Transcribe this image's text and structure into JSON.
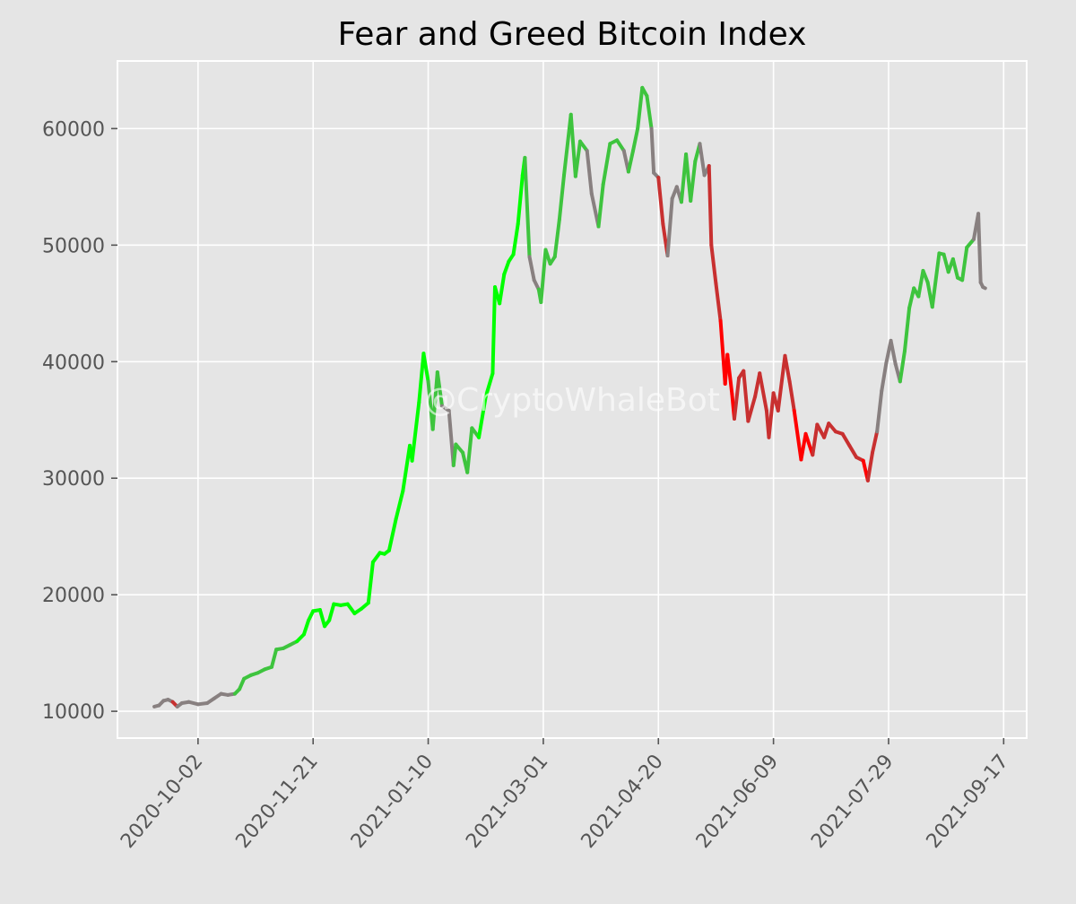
{
  "chart_data": {
    "type": "line",
    "title": "Fear and Greed Bitcoin Index",
    "xlabel": "",
    "ylabel": "",
    "watermark": "@CryptoWhaleBot",
    "xlim": [
      "2020-08-28",
      "2021-09-27"
    ],
    "ylim": [
      7700,
      65800
    ],
    "grid": true,
    "x_ticks": [
      "2020-10-02",
      "2020-11-21",
      "2021-01-10",
      "2021-03-01",
      "2021-04-20",
      "2021-06-09",
      "2021-07-29",
      "2021-09-17"
    ],
    "y_ticks": [
      10000,
      20000,
      30000,
      40000,
      50000,
      60000
    ],
    "color_scale": {
      "extreme_fear": "#ff0000",
      "fear": "#c83030",
      "neutral": "#888080",
      "greed": "#3ec43e",
      "extreme_greed": "#00ff00"
    },
    "series": [
      {
        "points": [
          {
            "x": "2020-09-13",
            "y": 10400,
            "sentiment": "fear"
          },
          {
            "x": "2020-09-15",
            "y": 10500,
            "sentiment": "neutral"
          },
          {
            "x": "2020-09-17",
            "y": 10900,
            "sentiment": "neutral"
          },
          {
            "x": "2020-09-19",
            "y": 11000,
            "sentiment": "neutral"
          },
          {
            "x": "2020-09-21",
            "y": 10800,
            "sentiment": "neutral"
          },
          {
            "x": "2020-09-23",
            "y": 10400,
            "sentiment": "fear"
          },
          {
            "x": "2020-09-25",
            "y": 10700,
            "sentiment": "neutral"
          },
          {
            "x": "2020-09-28",
            "y": 10800,
            "sentiment": "neutral"
          },
          {
            "x": "2020-10-02",
            "y": 10600,
            "sentiment": "neutral"
          },
          {
            "x": "2020-10-06",
            "y": 10700,
            "sentiment": "neutral"
          },
          {
            "x": "2020-10-09",
            "y": 11100,
            "sentiment": "neutral"
          },
          {
            "x": "2020-10-12",
            "y": 11500,
            "sentiment": "neutral"
          },
          {
            "x": "2020-10-15",
            "y": 11400,
            "sentiment": "neutral"
          },
          {
            "x": "2020-10-18",
            "y": 11500,
            "sentiment": "neutral"
          },
          {
            "x": "2020-10-20",
            "y": 11900,
            "sentiment": "greed"
          },
          {
            "x": "2020-10-22",
            "y": 12800,
            "sentiment": "greed"
          },
          {
            "x": "2020-10-25",
            "y": 13100,
            "sentiment": "greed"
          },
          {
            "x": "2020-10-28",
            "y": 13300,
            "sentiment": "greed"
          },
          {
            "x": "2020-10-31",
            "y": 13600,
            "sentiment": "greed"
          },
          {
            "x": "2020-11-03",
            "y": 13800,
            "sentiment": "greed"
          },
          {
            "x": "2020-11-05",
            "y": 15300,
            "sentiment": "greed"
          },
          {
            "x": "2020-11-08",
            "y": 15400,
            "sentiment": "greed"
          },
          {
            "x": "2020-11-11",
            "y": 15700,
            "sentiment": "greed"
          },
          {
            "x": "2020-11-14",
            "y": 16000,
            "sentiment": "greed"
          },
          {
            "x": "2020-11-17",
            "y": 16600,
            "sentiment": "extreme_greed"
          },
          {
            "x": "2020-11-19",
            "y": 17800,
            "sentiment": "extreme_greed"
          },
          {
            "x": "2020-11-21",
            "y": 18600,
            "sentiment": "extreme_greed"
          },
          {
            "x": "2020-11-24",
            "y": 18700,
            "sentiment": "extreme_greed"
          },
          {
            "x": "2020-11-26",
            "y": 17300,
            "sentiment": "extreme_greed"
          },
          {
            "x": "2020-11-28",
            "y": 17800,
            "sentiment": "extreme_greed"
          },
          {
            "x": "2020-11-30",
            "y": 19200,
            "sentiment": "extreme_greed"
          },
          {
            "x": "2020-12-03",
            "y": 19100,
            "sentiment": "extreme_greed"
          },
          {
            "x": "2020-12-06",
            "y": 19200,
            "sentiment": "extreme_greed"
          },
          {
            "x": "2020-12-09",
            "y": 18400,
            "sentiment": "extreme_greed"
          },
          {
            "x": "2020-12-12",
            "y": 18800,
            "sentiment": "extreme_greed"
          },
          {
            "x": "2020-12-15",
            "y": 19300,
            "sentiment": "extreme_greed"
          },
          {
            "x": "2020-12-17",
            "y": 22800,
            "sentiment": "extreme_greed"
          },
          {
            "x": "2020-12-20",
            "y": 23600,
            "sentiment": "extreme_greed"
          },
          {
            "x": "2020-12-22",
            "y": 23500,
            "sentiment": "extreme_greed"
          },
          {
            "x": "2020-12-24",
            "y": 23800,
            "sentiment": "extreme_greed"
          },
          {
            "x": "2020-12-27",
            "y": 26500,
            "sentiment": "extreme_greed"
          },
          {
            "x": "2020-12-30",
            "y": 28900,
            "sentiment": "extreme_greed"
          },
          {
            "x": "2021-01-02",
            "y": 32800,
            "sentiment": "extreme_greed"
          },
          {
            "x": "2021-01-03",
            "y": 31500,
            "sentiment": "extreme_greed"
          },
          {
            "x": "2021-01-06",
            "y": 36500,
            "sentiment": "extreme_greed"
          },
          {
            "x": "2021-01-08",
            "y": 40700,
            "sentiment": "extreme_greed"
          },
          {
            "x": "2021-01-10",
            "y": 38300,
            "sentiment": "extreme_greed"
          },
          {
            "x": "2021-01-12",
            "y": 34200,
            "sentiment": "greed"
          },
          {
            "x": "2021-01-14",
            "y": 39100,
            "sentiment": "greed"
          },
          {
            "x": "2021-01-16",
            "y": 36200,
            "sentiment": "greed"
          },
          {
            "x": "2021-01-19",
            "y": 35800,
            "sentiment": "neutral"
          },
          {
            "x": "2021-01-21",
            "y": 31100,
            "sentiment": "neutral"
          },
          {
            "x": "2021-01-22",
            "y": 32900,
            "sentiment": "greed"
          },
          {
            "x": "2021-01-25",
            "y": 32200,
            "sentiment": "greed"
          },
          {
            "x": "2021-01-27",
            "y": 30500,
            "sentiment": "greed"
          },
          {
            "x": "2021-01-29",
            "y": 34300,
            "sentiment": "greed"
          },
          {
            "x": "2021-02-01",
            "y": 33500,
            "sentiment": "greed"
          },
          {
            "x": "2021-02-04",
            "y": 37000,
            "sentiment": "extreme_greed"
          },
          {
            "x": "2021-02-07",
            "y": 39000,
            "sentiment": "extreme_greed"
          },
          {
            "x": "2021-02-08",
            "y": 46400,
            "sentiment": "extreme_greed"
          },
          {
            "x": "2021-02-10",
            "y": 45000,
            "sentiment": "extreme_greed"
          },
          {
            "x": "2021-02-12",
            "y": 47500,
            "sentiment": "extreme_greed"
          },
          {
            "x": "2021-02-14",
            "y": 48600,
            "sentiment": "extreme_greed"
          },
          {
            "x": "2021-02-16",
            "y": 49200,
            "sentiment": "extreme_greed"
          },
          {
            "x": "2021-02-18",
            "y": 51800,
            "sentiment": "extreme_greed"
          },
          {
            "x": "2021-02-20",
            "y": 56000,
            "sentiment": "extreme_greed"
          },
          {
            "x": "2021-02-21",
            "y": 57500,
            "sentiment": "extreme_greed"
          },
          {
            "x": "2021-02-23",
            "y": 49000,
            "sentiment": "greed"
          },
          {
            "x": "2021-02-25",
            "y": 47000,
            "sentiment": "neutral"
          },
          {
            "x": "2021-02-27",
            "y": 46200,
            "sentiment": "neutral"
          },
          {
            "x": "2021-02-28",
            "y": 45100,
            "sentiment": "greed"
          },
          {
            "x": "2021-03-02",
            "y": 49600,
            "sentiment": "greed"
          },
          {
            "x": "2021-03-04",
            "y": 48400,
            "sentiment": "greed"
          },
          {
            "x": "2021-03-06",
            "y": 49000,
            "sentiment": "greed"
          },
          {
            "x": "2021-03-08",
            "y": 52200,
            "sentiment": "greed"
          },
          {
            "x": "2021-03-10",
            "y": 56000,
            "sentiment": "greed"
          },
          {
            "x": "2021-03-13",
            "y": 61200,
            "sentiment": "greed"
          },
          {
            "x": "2021-03-15",
            "y": 55900,
            "sentiment": "greed"
          },
          {
            "x": "2021-03-17",
            "y": 58900,
            "sentiment": "greed"
          },
          {
            "x": "2021-03-20",
            "y": 58100,
            "sentiment": "greed"
          },
          {
            "x": "2021-03-22",
            "y": 54400,
            "sentiment": "neutral"
          },
          {
            "x": "2021-03-25",
            "y": 51600,
            "sentiment": "neutral"
          },
          {
            "x": "2021-03-27",
            "y": 55200,
            "sentiment": "greed"
          },
          {
            "x": "2021-03-30",
            "y": 58700,
            "sentiment": "greed"
          },
          {
            "x": "2021-04-02",
            "y": 59000,
            "sentiment": "greed"
          },
          {
            "x": "2021-04-05",
            "y": 58100,
            "sentiment": "greed"
          },
          {
            "x": "2021-04-07",
            "y": 56300,
            "sentiment": "neutral"
          },
          {
            "x": "2021-04-09",
            "y": 58100,
            "sentiment": "greed"
          },
          {
            "x": "2021-04-11",
            "y": 60000,
            "sentiment": "greed"
          },
          {
            "x": "2021-04-13",
            "y": 63500,
            "sentiment": "greed"
          },
          {
            "x": "2021-04-15",
            "y": 62800,
            "sentiment": "greed"
          },
          {
            "x": "2021-04-17",
            "y": 60000,
            "sentiment": "greed"
          },
          {
            "x": "2021-04-18",
            "y": 56200,
            "sentiment": "neutral"
          },
          {
            "x": "2021-04-20",
            "y": 55800,
            "sentiment": "neutral"
          },
          {
            "x": "2021-04-22",
            "y": 51800,
            "sentiment": "fear"
          },
          {
            "x": "2021-04-24",
            "y": 49100,
            "sentiment": "fear"
          },
          {
            "x": "2021-04-26",
            "y": 54000,
            "sentiment": "neutral"
          },
          {
            "x": "2021-04-28",
            "y": 55000,
            "sentiment": "neutral"
          },
          {
            "x": "2021-04-30",
            "y": 53700,
            "sentiment": "neutral"
          },
          {
            "x": "2021-05-02",
            "y": 57800,
            "sentiment": "greed"
          },
          {
            "x": "2021-05-04",
            "y": 53800,
            "sentiment": "greed"
          },
          {
            "x": "2021-05-06",
            "y": 57200,
            "sentiment": "greed"
          },
          {
            "x": "2021-05-08",
            "y": 58700,
            "sentiment": "greed"
          },
          {
            "x": "2021-05-10",
            "y": 56000,
            "sentiment": "neutral"
          },
          {
            "x": "2021-05-12",
            "y": 56800,
            "sentiment": "neutral"
          },
          {
            "x": "2021-05-13",
            "y": 50000,
            "sentiment": "fear"
          },
          {
            "x": "2021-05-15",
            "y": 46700,
            "sentiment": "fear"
          },
          {
            "x": "2021-05-17",
            "y": 43500,
            "sentiment": "fear"
          },
          {
            "x": "2021-05-19",
            "y": 38100,
            "sentiment": "extreme_fear"
          },
          {
            "x": "2021-05-20",
            "y": 40600,
            "sentiment": "extreme_fear"
          },
          {
            "x": "2021-05-22",
            "y": 37200,
            "sentiment": "extreme_fear"
          },
          {
            "x": "2021-05-23",
            "y": 35100,
            "sentiment": "extreme_fear"
          },
          {
            "x": "2021-05-25",
            "y": 38600,
            "sentiment": "fear"
          },
          {
            "x": "2021-05-27",
            "y": 39200,
            "sentiment": "fear"
          },
          {
            "x": "2021-05-29",
            "y": 34900,
            "sentiment": "fear"
          },
          {
            "x": "2021-06-01",
            "y": 37000,
            "sentiment": "fear"
          },
          {
            "x": "2021-06-03",
            "y": 39000,
            "sentiment": "fear"
          },
          {
            "x": "2021-06-06",
            "y": 35800,
            "sentiment": "fear"
          },
          {
            "x": "2021-06-07",
            "y": 33500,
            "sentiment": "fear"
          },
          {
            "x": "2021-06-09",
            "y": 37300,
            "sentiment": "fear"
          },
          {
            "x": "2021-06-11",
            "y": 35800,
            "sentiment": "fear"
          },
          {
            "x": "2021-06-14",
            "y": 40500,
            "sentiment": "fear"
          },
          {
            "x": "2021-06-16",
            "y": 38300,
            "sentiment": "fear"
          },
          {
            "x": "2021-06-18",
            "y": 35800,
            "sentiment": "fear"
          },
          {
            "x": "2021-06-21",
            "y": 31600,
            "sentiment": "extreme_fear"
          },
          {
            "x": "2021-06-23",
            "y": 33800,
            "sentiment": "extreme_fear"
          },
          {
            "x": "2021-06-26",
            "y": 32000,
            "sentiment": "extreme_fear"
          },
          {
            "x": "2021-06-28",
            "y": 34600,
            "sentiment": "fear"
          },
          {
            "x": "2021-07-01",
            "y": 33500,
            "sentiment": "fear"
          },
          {
            "x": "2021-07-03",
            "y": 34700,
            "sentiment": "fear"
          },
          {
            "x": "2021-07-06",
            "y": 34000,
            "sentiment": "fear"
          },
          {
            "x": "2021-07-09",
            "y": 33800,
            "sentiment": "fear"
          },
          {
            "x": "2021-07-12",
            "y": 32800,
            "sentiment": "fear"
          },
          {
            "x": "2021-07-15",
            "y": 31800,
            "sentiment": "fear"
          },
          {
            "x": "2021-07-18",
            "y": 31500,
            "sentiment": "fear"
          },
          {
            "x": "2021-07-20",
            "y": 29800,
            "sentiment": "extreme_fear"
          },
          {
            "x": "2021-07-22",
            "y": 32200,
            "sentiment": "fear"
          },
          {
            "x": "2021-07-24",
            "y": 34000,
            "sentiment": "fear"
          },
          {
            "x": "2021-07-26",
            "y": 37500,
            "sentiment": "neutral"
          },
          {
            "x": "2021-07-28",
            "y": 39900,
            "sentiment": "neutral"
          },
          {
            "x": "2021-07-30",
            "y": 41800,
            "sentiment": "neutral"
          },
          {
            "x": "2021-08-01",
            "y": 39800,
            "sentiment": "neutral"
          },
          {
            "x": "2021-08-03",
            "y": 38300,
            "sentiment": "neutral"
          },
          {
            "x": "2021-08-05",
            "y": 40900,
            "sentiment": "greed"
          },
          {
            "x": "2021-08-07",
            "y": 44600,
            "sentiment": "greed"
          },
          {
            "x": "2021-08-09",
            "y": 46300,
            "sentiment": "greed"
          },
          {
            "x": "2021-08-11",
            "y": 45600,
            "sentiment": "greed"
          },
          {
            "x": "2021-08-13",
            "y": 47800,
            "sentiment": "greed"
          },
          {
            "x": "2021-08-15",
            "y": 46800,
            "sentiment": "greed"
          },
          {
            "x": "2021-08-17",
            "y": 44700,
            "sentiment": "greed"
          },
          {
            "x": "2021-08-20",
            "y": 49300,
            "sentiment": "greed"
          },
          {
            "x": "2021-08-22",
            "y": 49200,
            "sentiment": "greed"
          },
          {
            "x": "2021-08-24",
            "y": 47700,
            "sentiment": "greed"
          },
          {
            "x": "2021-08-26",
            "y": 48800,
            "sentiment": "greed"
          },
          {
            "x": "2021-08-28",
            "y": 47200,
            "sentiment": "greed"
          },
          {
            "x": "2021-08-30",
            "y": 47000,
            "sentiment": "greed"
          },
          {
            "x": "2021-09-01",
            "y": 49800,
            "sentiment": "greed"
          },
          {
            "x": "2021-09-04",
            "y": 50500,
            "sentiment": "greed"
          },
          {
            "x": "2021-09-06",
            "y": 52700,
            "sentiment": "neutral"
          },
          {
            "x": "2021-09-07",
            "y": 46800,
            "sentiment": "neutral"
          },
          {
            "x": "2021-09-08",
            "y": 46400,
            "sentiment": "neutral"
          },
          {
            "x": "2021-09-09",
            "y": 46300,
            "sentiment": "neutral"
          }
        ]
      }
    ]
  }
}
